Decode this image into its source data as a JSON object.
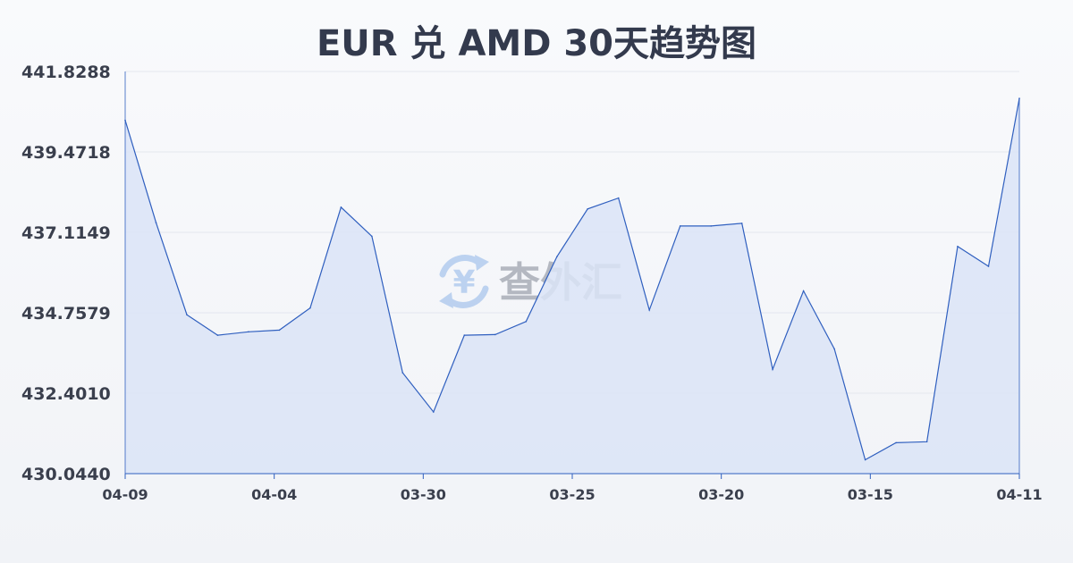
{
  "watermark": {
    "text": "查外汇",
    "icon": "yen-exchange-icon",
    "color": "#8fb4e8"
  },
  "colors": {
    "line": "#2f5fbf",
    "fill": "#dbe4f7",
    "grid": "#e4e7ee",
    "axis": "#2f5fbf"
  },
  "chart_data": {
    "type": "area",
    "title": "EUR 兑 AMD 30天趋势图",
    "xlabel": "",
    "ylabel": "",
    "ylim": [
      430.044,
      441.8288
    ],
    "yticks": [
      "441.8288",
      "439.4718",
      "437.1149",
      "434.7579",
      "432.4010",
      "430.0440"
    ],
    "xtick_labels": [
      "04-09",
      "04-04",
      "03-30",
      "03-25",
      "03-20",
      "03-15",
      "04-11"
    ],
    "grid": true,
    "legend": "none",
    "series": [
      {
        "values": [
          440.4,
          437.4,
          434.7,
          434.1,
          434.2,
          434.25,
          434.9,
          437.85,
          437.0,
          433.0,
          431.85,
          434.1,
          434.12,
          434.5,
          436.4,
          437.8,
          438.12,
          434.84,
          437.3,
          437.3,
          437.38,
          433.1,
          435.4,
          433.7,
          430.45,
          430.95,
          430.98,
          436.7,
          436.12,
          441.04
        ]
      }
    ]
  }
}
